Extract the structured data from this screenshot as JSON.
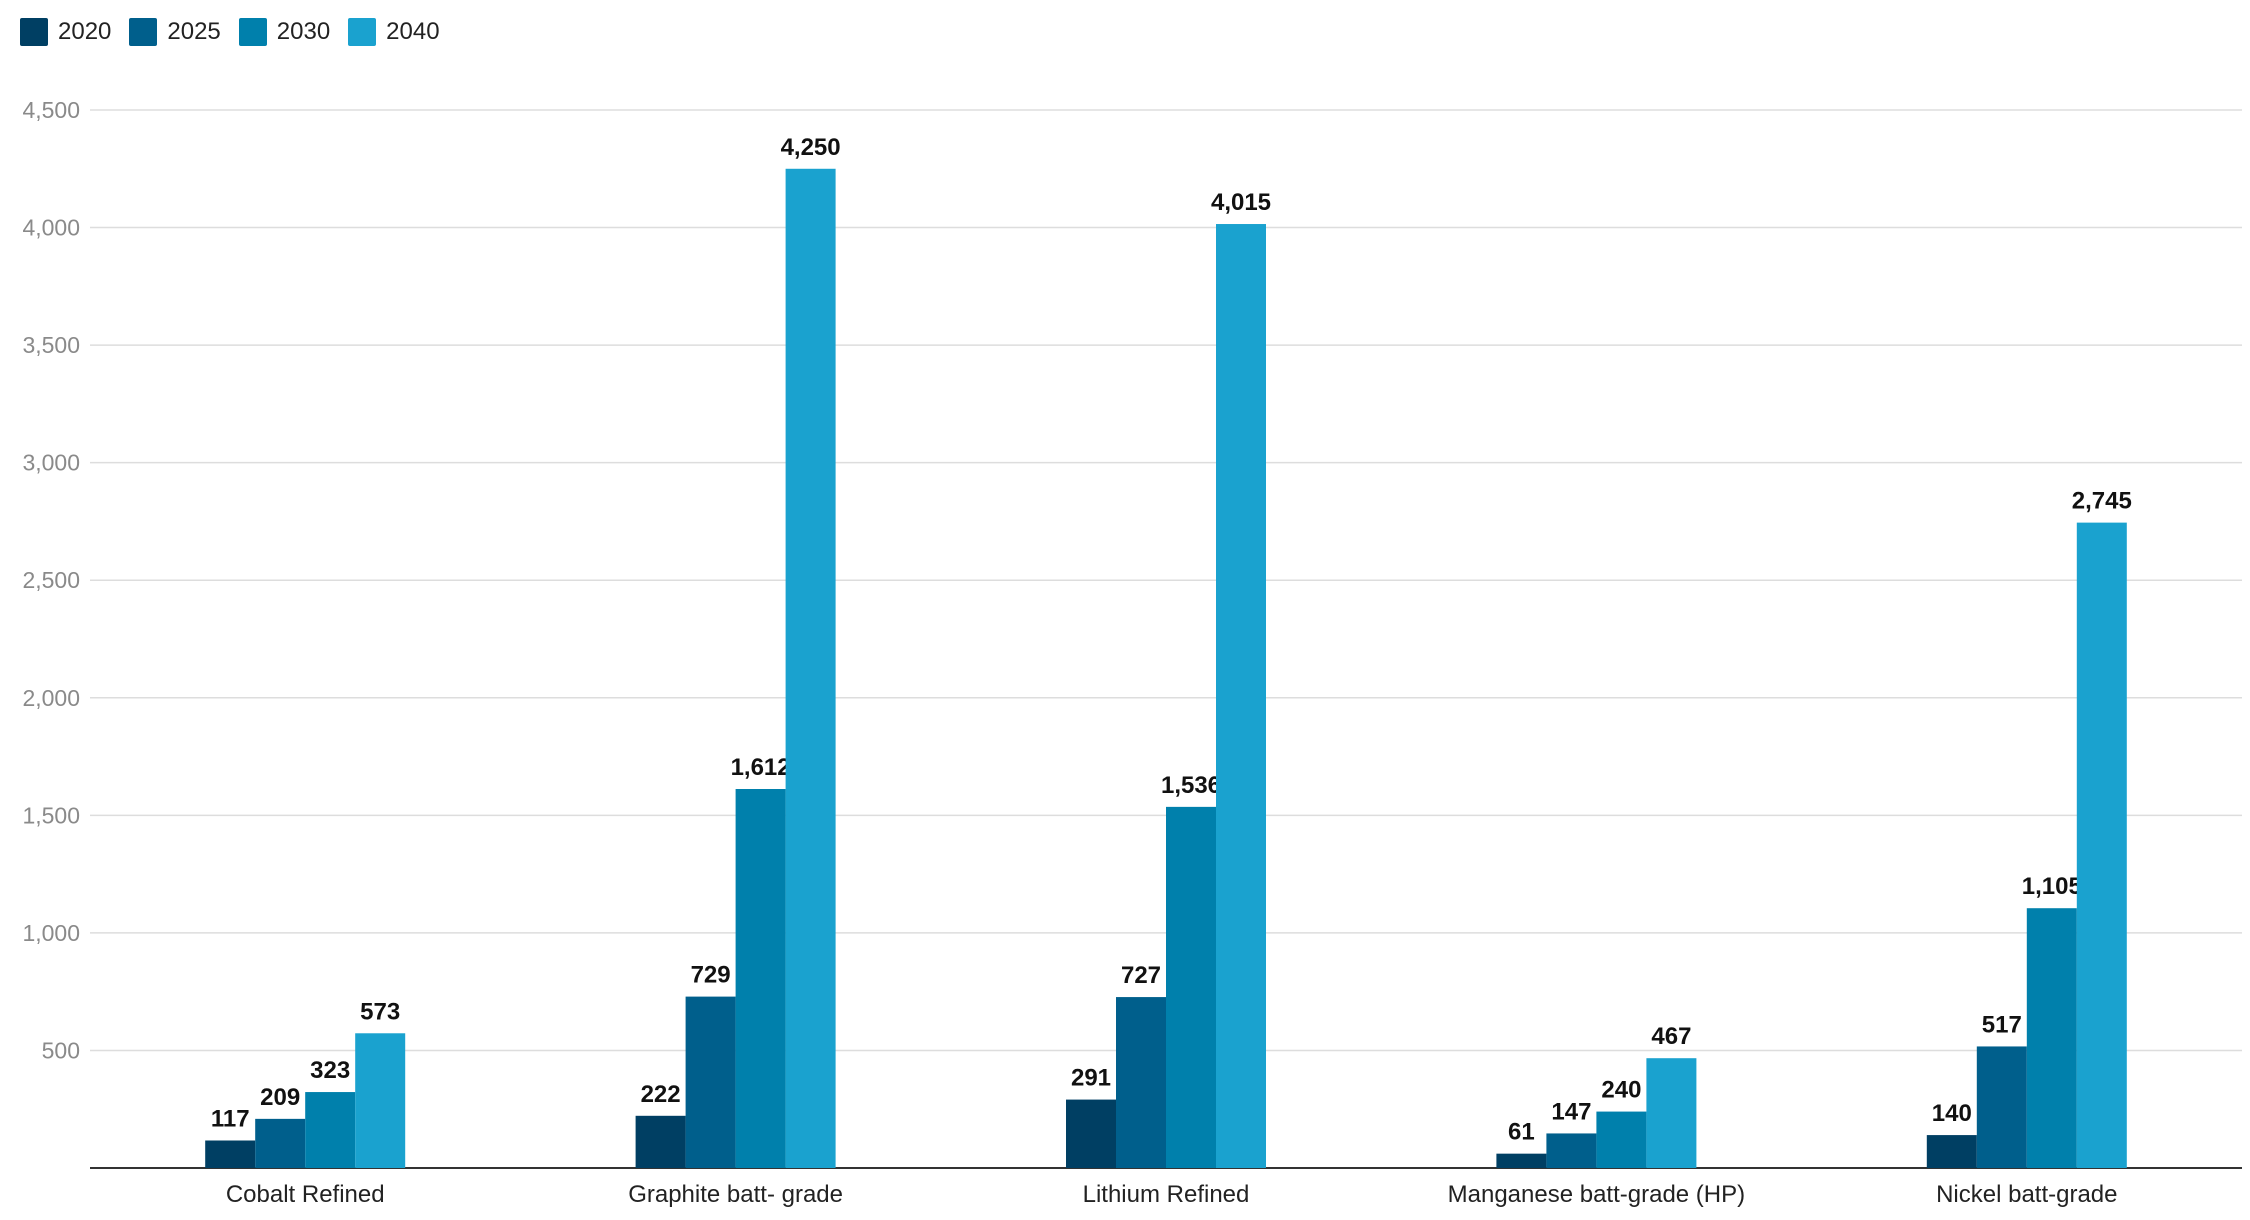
{
  "chart_data": {
    "type": "bar",
    "title": "",
    "xlabel": "",
    "ylabel": "",
    "ylim": [
      0,
      4500
    ],
    "yticks": [
      500,
      1000,
      1500,
      2000,
      2500,
      3000,
      3500,
      4000,
      4500
    ],
    "ytick_labels": [
      "500",
      "1,000",
      "1,500",
      "2,000",
      "2,500",
      "3,000",
      "3,500",
      "4,000",
      "4,500"
    ],
    "grid": true,
    "legend_position": "top-left",
    "categories": [
      "Cobalt Refined",
      "Graphite batt- grade",
      "Lithium Refined",
      "Manganese batt-grade (HP)",
      "Nickel batt-grade"
    ],
    "series": [
      {
        "name": "2020",
        "color": "#003f63",
        "values": [
          117,
          222,
          291,
          61,
          140
        ],
        "labels": [
          "117",
          "222",
          "291",
          "61",
          "140"
        ]
      },
      {
        "name": "2025",
        "color": "#005f8c",
        "values": [
          209,
          729,
          727,
          147,
          517
        ],
        "labels": [
          "209",
          "729",
          "727",
          "147",
          "517"
        ]
      },
      {
        "name": "2030",
        "color": "#0080ac",
        "values": [
          323,
          1612,
          1536,
          240,
          1105
        ],
        "labels": [
          "323",
          "1,612",
          "1,536",
          "240",
          "1,105"
        ]
      },
      {
        "name": "2040",
        "color": "#1aa2cf",
        "values": [
          573,
          4250,
          4015,
          467,
          2745
        ],
        "labels": [
          "573",
          "4,250",
          "4,015",
          "467",
          "2,745"
        ]
      }
    ]
  }
}
